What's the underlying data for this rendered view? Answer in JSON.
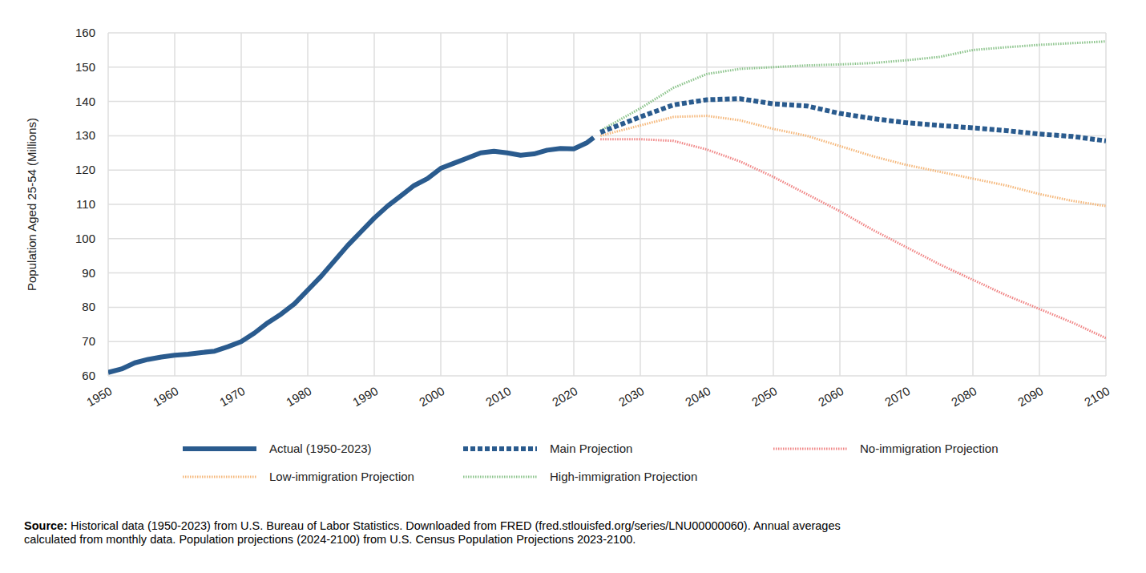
{
  "chart_data": {
    "type": "line",
    "y_label": "Population Aged 25-54 (Millions)",
    "source_label": "Source:",
    "source": [
      "Historical data (1950-2023) from U.S. Bureau of Labor Statistics. Downloaded from FRED (fred.stlouisfed.org/series/LNU00000060). Annual averages",
      "calculated from monthly data. Population projections (2024-2100) from U.S. Census Population Projections 2023-2100."
    ],
    "x": [
      1950,
      1952,
      1954,
      1956,
      1958,
      1960,
      1962,
      1964,
      1966,
      1968,
      1970,
      1972,
      1974,
      1976,
      1978,
      1980,
      1982,
      1984,
      1986,
      1988,
      1990,
      1992,
      1994,
      1996,
      1998,
      2000,
      2002,
      2004,
      2006,
      2008,
      2010,
      2012,
      2014,
      2016,
      2018,
      2020,
      2022,
      2023,
      2024,
      2030,
      2035,
      2040,
      2045,
      2050,
      2055,
      2060,
      2065,
      2070,
      2075,
      2080,
      2085,
      2090,
      2095,
      2100
    ],
    "series": [
      {
        "name": "Actual (1950-2023)",
        "color": "#2a5b8e",
        "line_style": "solid",
        "values": [
          61.0,
          62.0,
          63.8,
          64.8,
          65.5,
          66.0,
          66.3,
          66.8,
          67.2,
          68.5,
          70.0,
          72.5,
          75.5,
          78.0,
          81.0,
          85.0,
          89.0,
          93.5,
          98.0,
          102.0,
          106.0,
          109.5,
          112.5,
          115.5,
          117.5,
          120.5,
          122.0,
          123.5,
          125.0,
          125.5,
          125.0,
          124.3,
          124.7,
          125.8,
          126.3,
          126.2,
          128.0,
          129.5,
          null,
          null,
          null,
          null,
          null,
          null,
          null,
          null,
          null,
          null,
          null,
          null,
          null,
          null,
          null,
          null
        ]
      },
      {
        "name": "Main Projection",
        "color": "#2a5b8e",
        "line_style": "dashed",
        "values": [
          null,
          null,
          null,
          null,
          null,
          null,
          null,
          null,
          null,
          null,
          null,
          null,
          null,
          null,
          null,
          null,
          null,
          null,
          null,
          null,
          null,
          null,
          null,
          null,
          null,
          null,
          null,
          null,
          null,
          null,
          null,
          null,
          null,
          null,
          null,
          null,
          null,
          null,
          131.0,
          135.5,
          139.0,
          140.5,
          140.8,
          139.3,
          138.7,
          136.5,
          135.0,
          133.8,
          133.0,
          132.3,
          131.5,
          130.5,
          129.8,
          128.5
        ]
      },
      {
        "name": "No-immigration Projection",
        "color": "#f08585",
        "line_style": "dotted",
        "values": [
          null,
          null,
          null,
          null,
          null,
          null,
          null,
          null,
          null,
          null,
          null,
          null,
          null,
          null,
          null,
          null,
          null,
          null,
          null,
          null,
          null,
          null,
          null,
          null,
          null,
          null,
          null,
          null,
          null,
          null,
          null,
          null,
          null,
          null,
          null,
          null,
          null,
          null,
          129.0,
          129.0,
          128.5,
          126.0,
          122.5,
          118.0,
          113.0,
          108.0,
          102.5,
          97.5,
          92.5,
          88.0,
          83.5,
          79.5,
          75.5,
          71.0
        ]
      },
      {
        "name": "Low-immigration Projection",
        "color": "#f5b77a",
        "line_style": "dotted",
        "values": [
          null,
          null,
          null,
          null,
          null,
          null,
          null,
          null,
          null,
          null,
          null,
          null,
          null,
          null,
          null,
          null,
          null,
          null,
          null,
          null,
          null,
          null,
          null,
          null,
          null,
          null,
          null,
          null,
          null,
          null,
          null,
          null,
          null,
          null,
          null,
          null,
          null,
          null,
          130.0,
          133.0,
          135.5,
          135.8,
          134.5,
          132.0,
          130.0,
          127.0,
          124.0,
          121.5,
          119.5,
          117.5,
          115.5,
          113.0,
          111.0,
          109.5
        ]
      },
      {
        "name": "High-immigration Projection",
        "color": "#8cc48c",
        "line_style": "dotted",
        "values": [
          null,
          null,
          null,
          null,
          null,
          null,
          null,
          null,
          null,
          null,
          null,
          null,
          null,
          null,
          null,
          null,
          null,
          null,
          null,
          null,
          null,
          null,
          null,
          null,
          null,
          null,
          null,
          null,
          null,
          null,
          null,
          null,
          null,
          null,
          null,
          null,
          null,
          null,
          131.5,
          138.0,
          144.0,
          148.0,
          149.5,
          150.0,
          150.5,
          150.8,
          151.2,
          152.0,
          153.0,
          155.0,
          155.8,
          156.5,
          157.0,
          157.5
        ]
      }
    ],
    "xlim": [
      1950,
      2100
    ],
    "xticks": [
      1950,
      1960,
      1970,
      1980,
      1990,
      2000,
      2010,
      2020,
      2030,
      2040,
      2050,
      2060,
      2070,
      2080,
      2090,
      2100
    ],
    "ylim": [
      60,
      160
    ],
    "yticks": [
      60,
      70,
      80,
      90,
      100,
      110,
      120,
      130,
      140,
      150,
      160
    ],
    "grid": true,
    "legend": "bottom"
  }
}
